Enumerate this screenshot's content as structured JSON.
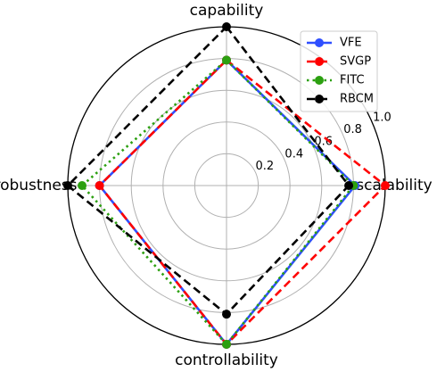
{
  "chart_data": {
    "type": "radar",
    "categories": [
      "capability",
      "scalability",
      "controllability",
      "robustness"
    ],
    "rlim": [
      0,
      1
    ],
    "rticks": [
      0.2,
      0.4,
      0.6,
      0.8,
      {
        "value": 1,
        "label": "1.0"
      }
    ],
    "grid": true,
    "legend": "upper right",
    "series": [
      {
        "name": "VFE",
        "color": "#2f4fff",
        "linestyle": "solid",
        "values": [
          0.79,
          0.81,
          1.0,
          0.8
        ]
      },
      {
        "name": "SVGP",
        "color": "#ff0000",
        "linestyle": "dashed",
        "values": [
          0.79,
          1.0,
          1.0,
          0.8
        ]
      },
      {
        "name": "FITC",
        "color": "#2ca010",
        "linestyle": "dotted",
        "values": [
          0.79,
          0.8,
          1.0,
          0.91
        ]
      },
      {
        "name": "RBCM",
        "color": "#000000",
        "linestyle": "dashed",
        "values": [
          1.0,
          0.77,
          0.81,
          1.0
        ]
      }
    ]
  }
}
